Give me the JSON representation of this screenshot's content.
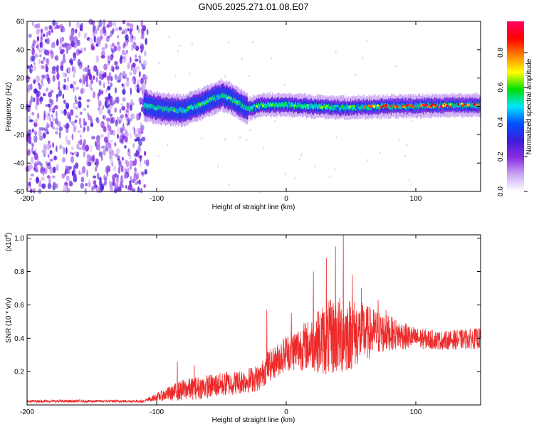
{
  "title": "GN05.2025.271.01.08.E07",
  "colors": {
    "snr_line": "#ee2a2a",
    "axis": "#000000",
    "background": "#ffffff"
  },
  "chart_data": [
    {
      "type": "heatmap",
      "name": "spectrogram",
      "xlabel": "Height of straight line (km)",
      "ylabel": "Frequency (Hz)",
      "xlim": [
        -200,
        150
      ],
      "ylim": [
        -60,
        60
      ],
      "xticks": [
        -200,
        -100,
        0,
        100
      ],
      "yticks": [
        60,
        40,
        20,
        0,
        -20,
        -40,
        -60
      ],
      "colorbar": {
        "label": "Normalized spectral amplitude",
        "range": [
          0.0,
          0.98
        ],
        "ticks": [
          "0.0",
          "0.2",
          "0.4",
          "0.6",
          "0.8"
        ],
        "tick_values": [
          0.0,
          0.2,
          0.4,
          0.6,
          0.8
        ],
        "colormap": [
          "#ffffff",
          "#c9a6f5",
          "#8a2be2",
          "#3a1ed8",
          "#0050ff",
          "#00e5ff",
          "#00e000",
          "#ffff00",
          "#ff8000",
          "#ff0000",
          "#ff0066"
        ]
      },
      "features": {
        "noise_region_x": [
          -200,
          -110
        ],
        "ridge_x": [
          -110,
          150
        ],
        "ridge_center_hz": [
          [
            -110,
            1
          ],
          [
            -95,
            -2
          ],
          [
            -80,
            -3
          ],
          [
            -65,
            2
          ],
          [
            -50,
            8
          ],
          [
            -40,
            4
          ],
          [
            -30,
            -2
          ],
          [
            -20,
            1
          ],
          [
            0,
            1
          ],
          [
            40,
            -1
          ],
          [
            80,
            0
          ],
          [
            150,
            1
          ]
        ]
      }
    },
    {
      "type": "line",
      "name": "snr",
      "xlabel": "Height of straight line (km)",
      "ylabel": "SNR (10 * v/v)",
      "scale_label": "(x10",
      "scale_exp": "4",
      "scale_close": ")",
      "xlim": [
        -200,
        150
      ],
      "ylim": [
        0,
        1.02
      ],
      "xticks": [
        -200,
        -100,
        0,
        100
      ],
      "yticks": [
        "0.2",
        "0.4",
        "0.6",
        "0.8",
        "1.0"
      ],
      "ytick_values": [
        0.2,
        0.4,
        0.6,
        0.8,
        1.0
      ],
      "envelope": {
        "x": [
          -200,
          -110,
          -100,
          -80,
          -60,
          -40,
          -20,
          -15,
          -10,
          0,
          20,
          30,
          45,
          60,
          80,
          100,
          120,
          150
        ],
        "base": [
          0.02,
          0.02,
          0.04,
          0.07,
          0.09,
          0.11,
          0.14,
          0.2,
          0.22,
          0.28,
          0.32,
          0.33,
          0.35,
          0.38,
          0.4,
          0.38,
          0.37,
          0.38
        ],
        "amp": [
          0.01,
          0.01,
          0.03,
          0.08,
          0.09,
          0.09,
          0.1,
          0.12,
          0.12,
          0.14,
          0.2,
          0.28,
          0.3,
          0.22,
          0.13,
          0.08,
          0.07,
          0.08
        ]
      },
      "spikes": [
        [
          -84,
          0.26
        ],
        [
          -71,
          0.24
        ],
        [
          -46,
          0.2
        ],
        [
          -15,
          0.57
        ],
        [
          4,
          0.55
        ],
        [
          21,
          0.8
        ],
        [
          31,
          0.88
        ],
        [
          38,
          0.95
        ],
        [
          44,
          1.02
        ],
        [
          51,
          0.78
        ],
        [
          58,
          0.7
        ],
        [
          71,
          0.63
        ],
        [
          77,
          0.57
        ]
      ]
    }
  ]
}
